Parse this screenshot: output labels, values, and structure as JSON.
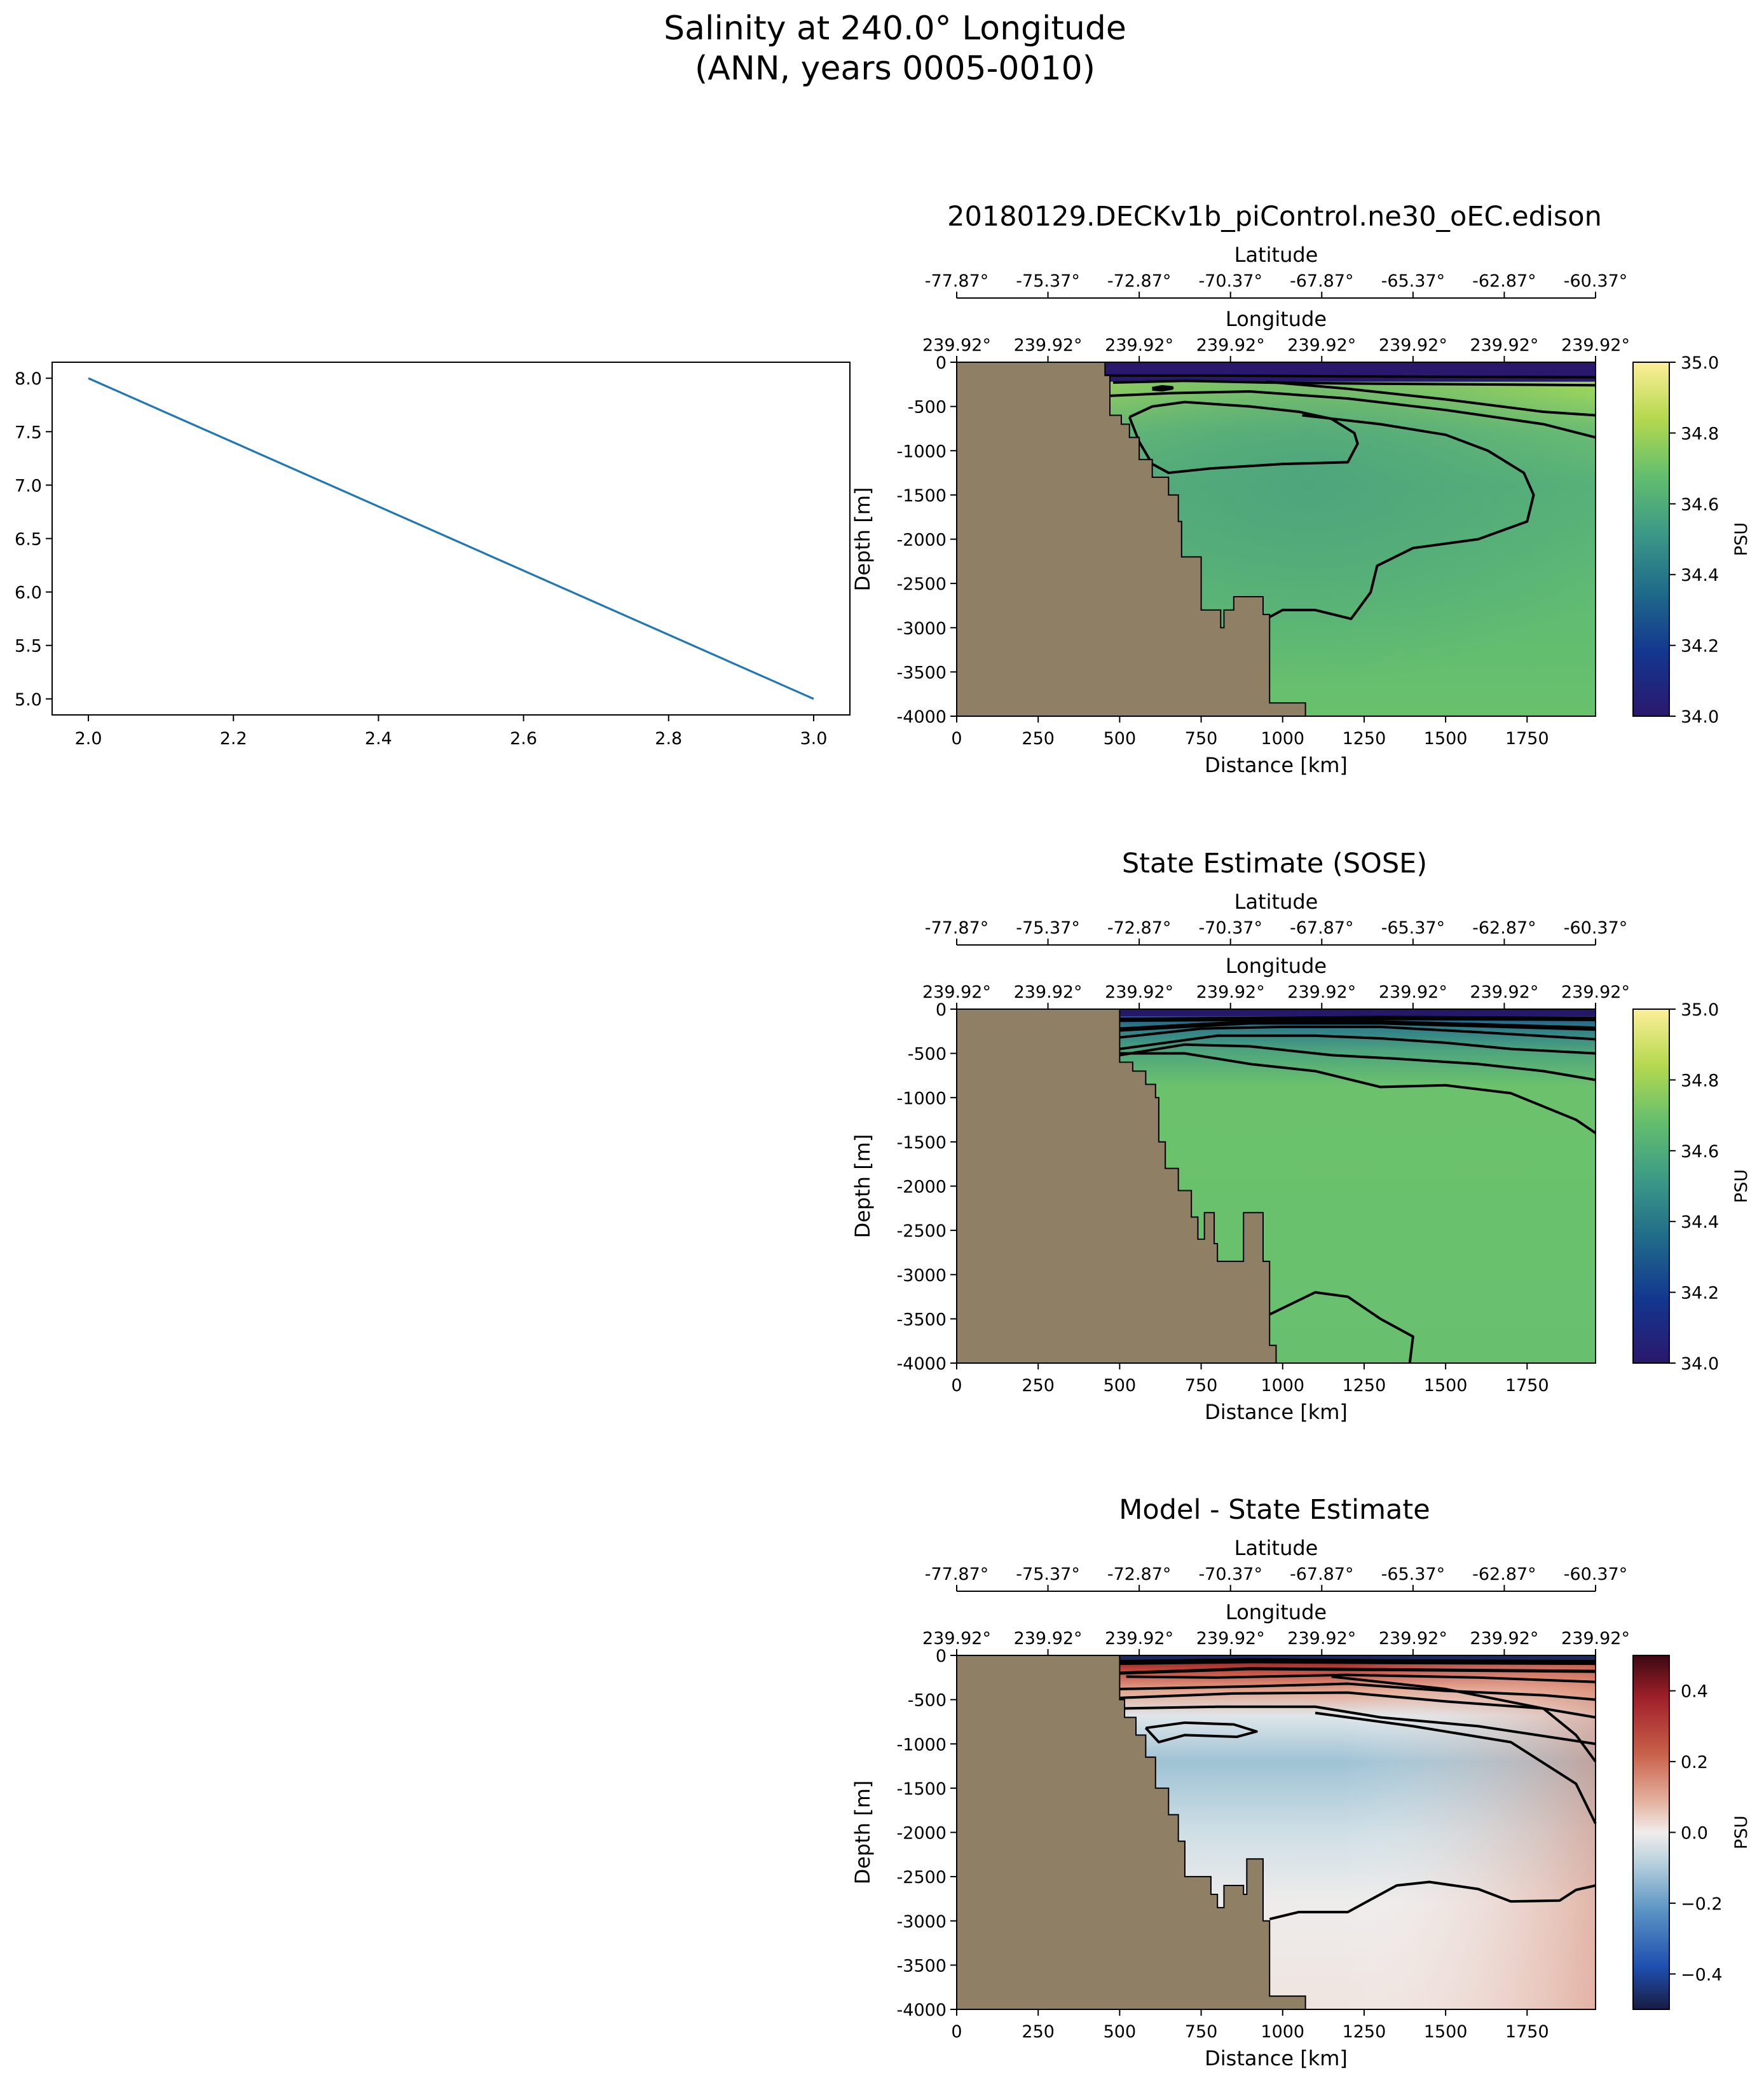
{
  "figure": {
    "title_line1": "Salinity at 240.0° Longitude",
    "title_line2": "(ANN, years 0005-0010)"
  },
  "colors": {
    "land": "#8e7f65",
    "line": "#1f77b4",
    "contour": "#000000"
  },
  "chart_data": [
    {
      "type": "line",
      "x": [
        2.0,
        3.0
      ],
      "y": [
        8.0,
        5.0
      ],
      "xlim": [
        1.95,
        3.05
      ],
      "ylim": [
        4.85,
        8.15
      ],
      "xticks": [
        "2.0",
        "2.2",
        "2.4",
        "2.6",
        "2.8",
        "3.0"
      ],
      "yticks": [
        "5.0",
        "5.5",
        "6.0",
        "6.5",
        "7.0",
        "7.5",
        "8.0"
      ],
      "grid": false
    },
    {
      "type": "heatmap",
      "title": "20180129.DECKv1b_piControl.ne30_oEC.edison",
      "xlabel": "Distance [km]",
      "ylabel": "Depth [m]",
      "top_axis_1_label": "Latitude",
      "top_axis_1_ticks": [
        "-77.87°",
        "-75.37°",
        "-72.87°",
        "-70.37°",
        "-67.87°",
        "-65.37°",
        "-62.87°",
        "-60.37°"
      ],
      "top_axis_2_label": "Longitude",
      "top_axis_2_ticks": [
        "239.92°",
        "239.92°",
        "239.92°",
        "239.92°",
        "239.92°",
        "239.92°",
        "239.92°",
        "239.92°"
      ],
      "xticks": [
        "0",
        "250",
        "500",
        "750",
        "1000",
        "1250",
        "1500",
        "1750"
      ],
      "yticks": [
        "0",
        "-500",
        "-1000",
        "-1500",
        "-2000",
        "-2500",
        "-3000",
        "-3500",
        "-4000"
      ],
      "xlim": [
        0,
        1960
      ],
      "ylim": [
        -4000,
        0
      ],
      "colorbar_label": "PSU",
      "colorbar_ticks": [
        "34.0",
        "34.2",
        "34.4",
        "34.6",
        "34.8",
        "35.0"
      ],
      "colorbar_range": [
        34.0,
        35.0
      ],
      "colormap": "haline"
    },
    {
      "type": "heatmap",
      "title": "State Estimate (SOSE)",
      "xlabel": "Distance [km]",
      "ylabel": "Depth [m]",
      "top_axis_1_label": "Latitude",
      "top_axis_1_ticks": [
        "-77.87°",
        "-75.37°",
        "-72.87°",
        "-70.37°",
        "-67.87°",
        "-65.37°",
        "-62.87°",
        "-60.37°"
      ],
      "top_axis_2_label": "Longitude",
      "top_axis_2_ticks": [
        "239.92°",
        "239.92°",
        "239.92°",
        "239.92°",
        "239.92°",
        "239.92°",
        "239.92°",
        "239.92°"
      ],
      "xticks": [
        "0",
        "250",
        "500",
        "750",
        "1000",
        "1250",
        "1500",
        "1750"
      ],
      "yticks": [
        "0",
        "-500",
        "-1000",
        "-1500",
        "-2000",
        "-2500",
        "-3000",
        "-3500",
        "-4000"
      ],
      "xlim": [
        0,
        1960
      ],
      "ylim": [
        -4000,
        0
      ],
      "colorbar_label": "PSU",
      "colorbar_ticks": [
        "34.0",
        "34.2",
        "34.4",
        "34.6",
        "34.8",
        "35.0"
      ],
      "colorbar_range": [
        34.0,
        35.0
      ],
      "colormap": "haline"
    },
    {
      "type": "heatmap",
      "title": "Model - State Estimate",
      "xlabel": "Distance [km]",
      "ylabel": "Depth [m]",
      "top_axis_1_label": "Latitude",
      "top_axis_1_ticks": [
        "-77.87°",
        "-75.37°",
        "-72.87°",
        "-70.37°",
        "-67.87°",
        "-65.37°",
        "-62.87°",
        "-60.37°"
      ],
      "top_axis_2_label": "Longitude",
      "top_axis_2_ticks": [
        "239.92°",
        "239.92°",
        "239.92°",
        "239.92°",
        "239.92°",
        "239.92°",
        "239.92°",
        "239.92°"
      ],
      "xticks": [
        "0",
        "250",
        "500",
        "750",
        "1000",
        "1250",
        "1500",
        "1750"
      ],
      "yticks": [
        "0",
        "-500",
        "-1000",
        "-1500",
        "-2000",
        "-2500",
        "-3000",
        "-3500",
        "-4000"
      ],
      "xlim": [
        0,
        1960
      ],
      "ylim": [
        -4000,
        0
      ],
      "colorbar_label": "PSU",
      "colorbar_ticks": [
        "−0.4",
        "−0.2",
        "0.0",
        "0.2",
        "0.4"
      ],
      "colorbar_range": [
        -0.5,
        0.5
      ],
      "colormap": "balance"
    }
  ]
}
